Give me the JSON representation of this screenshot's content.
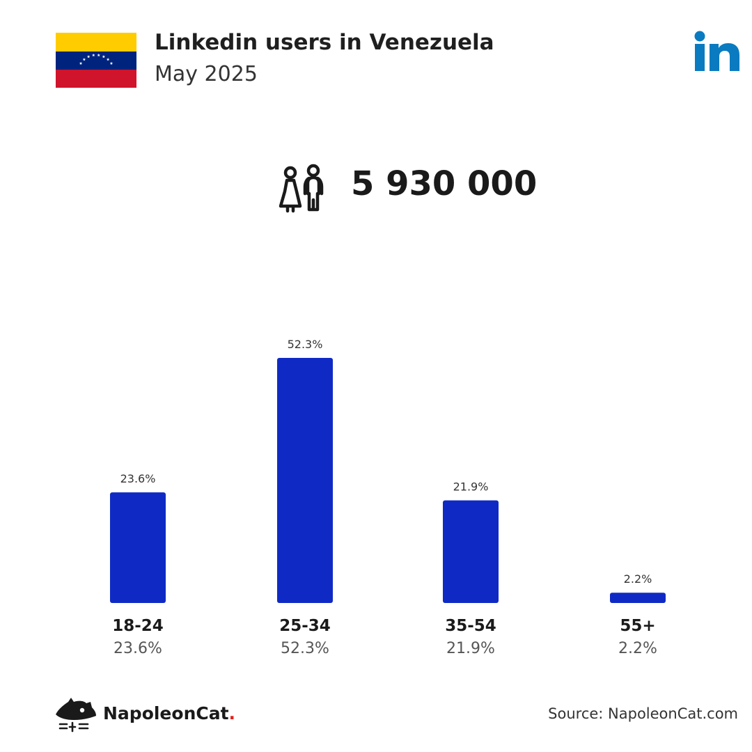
{
  "header": {
    "title": "Linkedin users in Venezuela",
    "subtitle": "May 2025"
  },
  "summary": {
    "total_users": "5 930 000"
  },
  "colors": {
    "bar": "#0f2ac4",
    "flag_yellow": "#ffcc00",
    "flag_blue": "#00247d",
    "flag_red": "#cf142b",
    "linkedin_blue": "#0a7bc0"
  },
  "icons": {
    "flag": "venezuela-flag",
    "brand": "linkedin-logo",
    "users": "people-icon",
    "footer": "napoleoncat-logo"
  },
  "chart_data": {
    "type": "bar",
    "categories": [
      "18-24",
      "25-34",
      "35-54",
      "55+"
    ],
    "values": [
      23.6,
      52.3,
      21.9,
      2.2
    ],
    "value_labels": [
      "23.6%",
      "52.3%",
      "21.9%",
      "2.2%"
    ],
    "ylim": [
      0,
      52.3
    ],
    "grid": false,
    "legend": "none"
  },
  "footer": {
    "brand_name": "NapoleonCat",
    "brand_dot": ".",
    "source": "Source: NapoleonCat.com"
  }
}
